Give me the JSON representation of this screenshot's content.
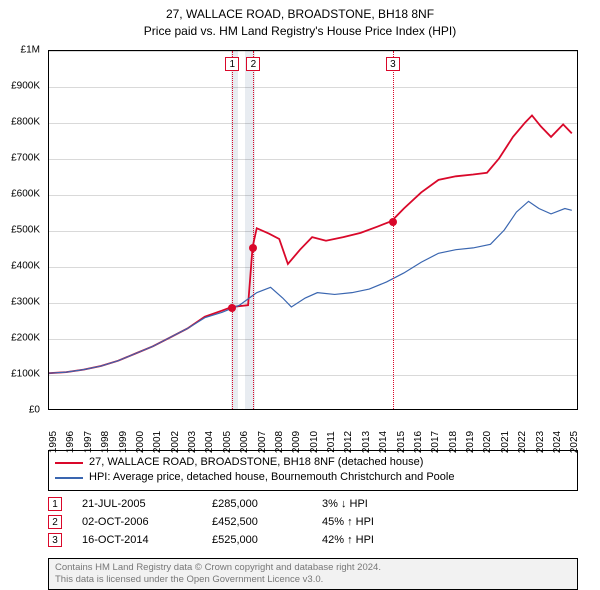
{
  "title_line1": "27, WALLACE ROAD, BROADSTONE, BH18 8NF",
  "title_line2": "Price paid vs. HM Land Registry's House Price Index (HPI)",
  "chart": {
    "type": "line",
    "background_color": "#ffffff",
    "grid_color": "#000000",
    "grid_opacity": 0.15,
    "band_color": "#e8ecf1",
    "ylim": [
      0,
      1000000
    ],
    "ytick_step": 100000,
    "yticks": [
      "£0",
      "£100K",
      "£200K",
      "£300K",
      "£400K",
      "£500K",
      "£600K",
      "£700K",
      "£800K",
      "£900K",
      "£1M"
    ],
    "xlim": [
      1995,
      2025.5
    ],
    "xticks": [
      1995,
      1996,
      1997,
      1998,
      1999,
      2000,
      2001,
      2002,
      2003,
      2004,
      2005,
      2006,
      2007,
      2008,
      2009,
      2010,
      2011,
      2012,
      2013,
      2014,
      2015,
      2016,
      2017,
      2018,
      2019,
      2020,
      2021,
      2022,
      2023,
      2024,
      2025
    ],
    "marker_line_color": "#d9082a",
    "series": [
      {
        "name": "property",
        "color": "#d9082a",
        "width": 1.8,
        "data": [
          [
            1995.0,
            100000
          ],
          [
            1996.0,
            103000
          ],
          [
            1997.0,
            110000
          ],
          [
            1998.0,
            120000
          ],
          [
            1999.0,
            135000
          ],
          [
            2000.0,
            155000
          ],
          [
            2001.0,
            175000
          ],
          [
            2002.0,
            200000
          ],
          [
            2003.0,
            225000
          ],
          [
            2004.0,
            258000
          ],
          [
            2005.0,
            275000
          ],
          [
            2005.55,
            285000
          ],
          [
            2006.5,
            290000
          ],
          [
            2006.76,
            452500
          ],
          [
            2007.0,
            505000
          ],
          [
            2007.7,
            490000
          ],
          [
            2008.3,
            475000
          ],
          [
            2008.8,
            405000
          ],
          [
            2009.5,
            445000
          ],
          [
            2010.2,
            480000
          ],
          [
            2011.0,
            470000
          ],
          [
            2012.0,
            480000
          ],
          [
            2013.0,
            492000
          ],
          [
            2014.0,
            510000
          ],
          [
            2014.79,
            525000
          ],
          [
            2015.5,
            560000
          ],
          [
            2016.5,
            605000
          ],
          [
            2017.5,
            640000
          ],
          [
            2018.5,
            650000
          ],
          [
            2019.5,
            655000
          ],
          [
            2020.3,
            660000
          ],
          [
            2021.0,
            700000
          ],
          [
            2021.8,
            760000
          ],
          [
            2022.5,
            800000
          ],
          [
            2022.9,
            820000
          ],
          [
            2023.4,
            790000
          ],
          [
            2024.0,
            760000
          ],
          [
            2024.7,
            795000
          ],
          [
            2025.2,
            770000
          ]
        ]
      },
      {
        "name": "hpi",
        "color": "#3a66b0",
        "width": 1.2,
        "data": [
          [
            1995.0,
            100000
          ],
          [
            1996.0,
            103000
          ],
          [
            1997.0,
            110000
          ],
          [
            1998.0,
            120000
          ],
          [
            1999.0,
            135000
          ],
          [
            2000.0,
            155000
          ],
          [
            2001.0,
            175000
          ],
          [
            2002.0,
            200000
          ],
          [
            2003.0,
            225000
          ],
          [
            2004.0,
            255000
          ],
          [
            2005.0,
            270000
          ],
          [
            2006.0,
            290000
          ],
          [
            2007.0,
            325000
          ],
          [
            2007.8,
            340000
          ],
          [
            2008.5,
            310000
          ],
          [
            2009.0,
            285000
          ],
          [
            2009.8,
            310000
          ],
          [
            2010.5,
            325000
          ],
          [
            2011.5,
            320000
          ],
          [
            2012.5,
            325000
          ],
          [
            2013.5,
            335000
          ],
          [
            2014.5,
            355000
          ],
          [
            2015.5,
            380000
          ],
          [
            2016.5,
            410000
          ],
          [
            2017.5,
            435000
          ],
          [
            2018.5,
            445000
          ],
          [
            2019.5,
            450000
          ],
          [
            2020.5,
            460000
          ],
          [
            2021.3,
            500000
          ],
          [
            2022.0,
            550000
          ],
          [
            2022.7,
            580000
          ],
          [
            2023.3,
            560000
          ],
          [
            2024.0,
            545000
          ],
          [
            2024.8,
            560000
          ],
          [
            2025.2,
            555000
          ]
        ]
      }
    ],
    "sale_markers": [
      {
        "n": "1",
        "x": 2005.55,
        "y": 285000
      },
      {
        "n": "2",
        "x": 2006.76,
        "y": 452500
      },
      {
        "n": "3",
        "x": 2014.79,
        "y": 525000
      }
    ],
    "bands": [
      {
        "from": 2005.5,
        "to": 2005.9
      },
      {
        "from": 2006.3,
        "to": 2006.85
      }
    ]
  },
  "legend": {
    "items": [
      {
        "color": "#d9082a",
        "label": "27, WALLACE ROAD, BROADSTONE, BH18 8NF (detached house)"
      },
      {
        "color": "#3a66b0",
        "label": "HPI: Average price, detached house, Bournemouth Christchurch and Poole"
      }
    ]
  },
  "sales": [
    {
      "n": "1",
      "date": "21-JUL-2005",
      "price": "£285,000",
      "hpi": "3% ↓ HPI"
    },
    {
      "n": "2",
      "date": "02-OCT-2006",
      "price": "£452,500",
      "hpi": "45% ↑ HPI"
    },
    {
      "n": "3",
      "date": "16-OCT-2014",
      "price": "£525,000",
      "hpi": "42% ↑ HPI"
    }
  ],
  "footer_line1": "Contains HM Land Registry data © Crown copyright and database right 2024.",
  "footer_line2": "This data is licensed under the Open Government Licence v3.0."
}
